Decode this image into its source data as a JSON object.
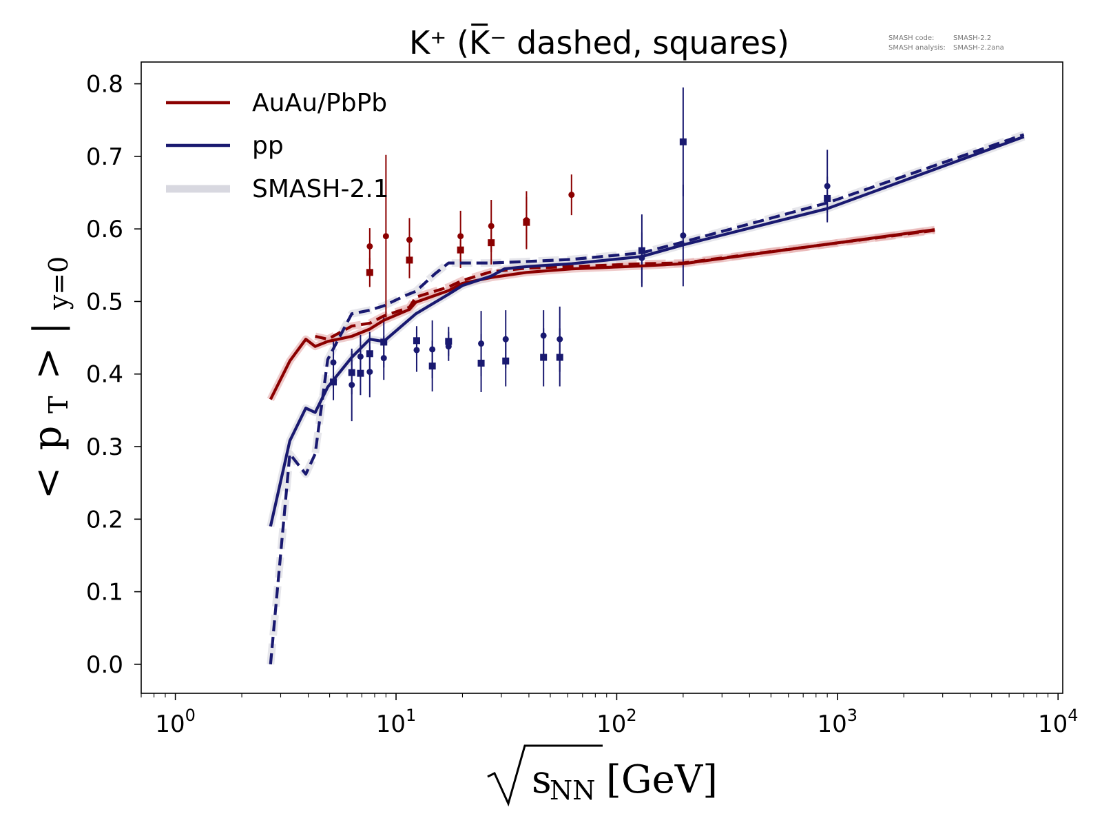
{
  "meta": {
    "code_label": "SMASH code:",
    "code_value": "SMASH-2.2",
    "analysis_label": "SMASH analysis:",
    "analysis_value": "SMASH-2.2ana"
  },
  "colors": {
    "aa": "#8b0000",
    "pp": "#191970",
    "ref": "#d8d8e0",
    "ref_aa": "#e6b0b0"
  },
  "chart_data": {
    "type": "line",
    "title": "K⁺ (K̅⁻ dashed, squares)",
    "xlabel": "√ s_NN [GeV]",
    "xlabel_root": "√",
    "xlabel_s": "s",
    "xlabel_sub": "NN",
    "xlabel_unit": "[GeV]",
    "ylabel": "< p_T > |_{y=0}",
    "ylabel_lt": "<",
    "ylabel_p": "p",
    "ylabel_psub": "T",
    "ylabel_gt": "> |",
    "ylabel_ysub": "y=0",
    "xscale": "log",
    "xlim": [
      0.7,
      10500
    ],
    "ylim": [
      -0.04,
      0.83
    ],
    "xticks": [
      1,
      10,
      100,
      1000,
      10000
    ],
    "xtick_base": "10",
    "xtick_exps": [
      "0",
      "1",
      "2",
      "3",
      "4"
    ],
    "yticks": [
      0.0,
      0.1,
      0.2,
      0.3,
      0.4,
      0.5,
      0.6,
      0.7,
      0.8
    ],
    "ytick_labels": [
      "0.0",
      "0.1",
      "0.2",
      "0.3",
      "0.4",
      "0.5",
      "0.6",
      "0.7",
      "0.8"
    ],
    "legend": {
      "position": "top-left",
      "entries": [
        {
          "label": "AuAu/PbPb",
          "style": "aa"
        },
        {
          "label": "pp",
          "style": "pp"
        },
        {
          "label": "SMASH-2.1",
          "style": "ref"
        }
      ]
    },
    "series": [
      {
        "key": "aa-kplus",
        "color": "aa",
        "dash": false,
        "kind": "line",
        "x": [
          2.7,
          3.3,
          3.9,
          4.3,
          4.9,
          6.3,
          7.6,
          8.8,
          11.5,
          12.3,
          17.3,
          20,
          27,
          39,
          62.4,
          130,
          200,
          2760
        ],
        "y": [
          0.365,
          0.418,
          0.448,
          0.438,
          0.445,
          0.452,
          0.462,
          0.474,
          0.489,
          0.499,
          0.515,
          0.525,
          0.533,
          0.54,
          0.545,
          0.549,
          0.552,
          0.599
        ]
      },
      {
        "key": "aa-kminus",
        "color": "aa",
        "dash": true,
        "kind": "line",
        "x": [
          4.3,
          4.9,
          6.3,
          7.6,
          8.8,
          11.5,
          12.3,
          17.3,
          20,
          27,
          39,
          62.4,
          130,
          200,
          2760
        ],
        "y": [
          0.452,
          0.448,
          0.466,
          0.47,
          0.48,
          0.492,
          0.506,
          0.52,
          0.529,
          0.541,
          0.546,
          0.548,
          0.552,
          0.553,
          0.598
        ]
      },
      {
        "key": "pp-kplus",
        "color": "pp",
        "dash": false,
        "kind": "line",
        "x": [
          2.7,
          3.3,
          3.9,
          4.3,
          4.9,
          6.3,
          7.6,
          8.8,
          12.3,
          17.3,
          20,
          27,
          31,
          39,
          62.4,
          130,
          200,
          900,
          7000
        ],
        "y": [
          0.19,
          0.308,
          0.353,
          0.347,
          0.382,
          0.423,
          0.448,
          0.445,
          0.483,
          0.51,
          0.522,
          0.535,
          0.545,
          0.548,
          0.552,
          0.562,
          0.578,
          0.628,
          0.727
        ]
      },
      {
        "key": "pp-kminus",
        "color": "pp",
        "dash": true,
        "kind": "line",
        "x": [
          2.7,
          3.3,
          3.9,
          4.3,
          4.9,
          6.3,
          7.6,
          8.8,
          11,
          12.3,
          15,
          17.3,
          20,
          27,
          39,
          62.4,
          130,
          200,
          900,
          7000
        ],
        "y": [
          0.0,
          0.29,
          0.262,
          0.29,
          0.42,
          0.483,
          0.488,
          0.494,
          0.508,
          0.514,
          0.538,
          0.553,
          0.553,
          0.553,
          0.555,
          0.558,
          0.567,
          0.582,
          0.636,
          0.73
        ]
      },
      {
        "key": "aa-kplus-data",
        "color": "aa",
        "marker": "circle",
        "kind": "points",
        "x": [
          7.6,
          9.0,
          11.5,
          19.6,
          27,
          39,
          62.4
        ],
        "y": [
          0.576,
          0.59,
          0.585,
          0.59,
          0.604,
          0.612,
          0.647
        ],
        "err": [
          0.025,
          0.112,
          0.03,
          0.035,
          0.036,
          0.04,
          0.028
        ]
      },
      {
        "key": "aa-kminus-data",
        "color": "aa",
        "marker": "square",
        "kind": "points",
        "x": [
          7.6,
          11.5,
          19.6,
          27,
          39
        ],
        "y": [
          0.54,
          0.557,
          0.571,
          0.581,
          0.609
        ],
        "err": [
          0.02,
          0.025,
          0.025,
          0.03,
          0.035
        ]
      },
      {
        "key": "pp-kplus-data",
        "color": "pp",
        "marker": "circle",
        "kind": "points",
        "x": [
          5.2,
          6.3,
          6.9,
          7.6,
          8.8,
          12.4,
          14.6,
          17.3,
          24.3,
          31.4,
          46.6,
          55.2,
          130,
          200,
          900
        ],
        "y": [
          0.416,
          0.385,
          0.424,
          0.403,
          0.422,
          0.433,
          0.434,
          0.438,
          0.442,
          0.448,
          0.453,
          0.448,
          0.56,
          0.591,
          0.659
        ],
        "err": [
          0.03,
          0.05,
          0.03,
          0.035,
          0.03,
          0.03,
          0.04,
          0.02,
          0.045,
          0.04,
          0.035,
          0.045,
          0.035,
          0.07,
          0.05
        ]
      },
      {
        "key": "pp-kminus-data",
        "color": "pp",
        "marker": "square",
        "kind": "points",
        "x": [
          5.2,
          6.3,
          6.9,
          7.6,
          8.8,
          12.4,
          14.6,
          17.3,
          24.3,
          31.4,
          46.6,
          55.2,
          130,
          200,
          900
        ],
        "y": [
          0.389,
          0.402,
          0.401,
          0.428,
          0.444,
          0.446,
          0.411,
          0.445,
          0.415,
          0.418,
          0.423,
          0.423,
          0.57,
          0.72,
          0.642
        ],
        "err": [
          0.025,
          0.03,
          0.03,
          0.03,
          0.035,
          0.02,
          0.035,
          0.02,
          0.04,
          0.035,
          0.04,
          0.04,
          0.05,
          0.075,
          0.03
        ]
      }
    ]
  }
}
